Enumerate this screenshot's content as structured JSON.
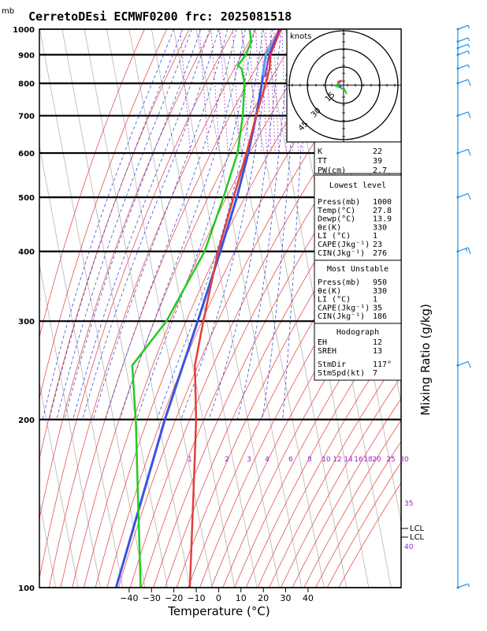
{
  "chart_data": {
    "type": "line",
    "title": "CerretoDEsi ECMWF0200  frc: 2025081518",
    "pressure_unit": "mb",
    "xlabel": "Temperature (°C)",
    "right_label": "Mixing Ratio  (g/kg)",
    "xlim": [
      -40,
      40
    ],
    "pressure_range": [
      1000,
      100
    ],
    "x_ticks": [
      "−40",
      "−30",
      "−20",
      "−10",
      "0",
      "10",
      "20",
      "30",
      "40"
    ],
    "pressure_levels": [
      100,
      200,
      300,
      400,
      500,
      600,
      700,
      800,
      900,
      1000
    ],
    "mixing_ratio_labels": [
      "1",
      "2",
      "3",
      "4",
      "6",
      "8",
      "10",
      "12",
      "14",
      "16",
      "18",
      "20",
      "25",
      "30",
      "35",
      "40"
    ],
    "lcl_labels": [
      "LCL",
      "LCL"
    ],
    "temperature_profile": [
      {
        "p": 1000,
        "t": 27.8
      },
      {
        "p": 950,
        "t": 24.5
      },
      {
        "p": 900,
        "t": 21.0
      },
      {
        "p": 850,
        "t": 19.5
      },
      {
        "p": 800,
        "t": 16.5
      },
      {
        "p": 700,
        "t": 9.5
      },
      {
        "p": 600,
        "t": 2.0
      },
      {
        "p": 500,
        "t": -7.5
      },
      {
        "p": 400,
        "t": -19.0
      },
      {
        "p": 300,
        "t": -31.5
      },
      {
        "p": 250,
        "t": -39.0
      },
      {
        "p": 200,
        "t": -43.0
      },
      {
        "p": 150,
        "t": -50.0
      },
      {
        "p": 100,
        "t": -60.0
      }
    ],
    "dewpoint_profile": [
      {
        "p": 1000,
        "t": 13.9
      },
      {
        "p": 950,
        "t": 13.5
      },
      {
        "p": 900,
        "t": 10.0
      },
      {
        "p": 860,
        "t": 5.5
      },
      {
        "p": 850,
        "t": 7.0
      },
      {
        "p": 800,
        "t": 7.0
      },
      {
        "p": 700,
        "t": 3.5
      },
      {
        "p": 600,
        "t": -2.0
      },
      {
        "p": 500,
        "t": -12.0
      },
      {
        "p": 400,
        "t": -25.0
      },
      {
        "p": 300,
        "t": -48.0
      },
      {
        "p": 250,
        "t": -67.0
      },
      {
        "p": 200,
        "t": -70.0
      },
      {
        "p": 150,
        "t": -75.0
      },
      {
        "p": 100,
        "t": -82.0
      }
    ],
    "parcel_profile": [
      {
        "p": 1000,
        "t": 27.8
      },
      {
        "p": 900,
        "t": 19.0
      },
      {
        "p": 825,
        "t": 15.8
      },
      {
        "p": 800,
        "t": 14.8
      },
      {
        "p": 700,
        "t": 9.5
      },
      {
        "p": 600,
        "t": 2.8
      },
      {
        "p": 500,
        "t": -6.0
      },
      {
        "p": 400,
        "t": -18.0
      },
      {
        "p": 300,
        "t": -34.0
      },
      {
        "p": 200,
        "t": -57.0
      },
      {
        "p": 100,
        "t": -93.0
      }
    ],
    "wind_profile": [
      {
        "p": 1000,
        "speed_kt": 4
      },
      {
        "p": 950,
        "speed_kt": 6
      },
      {
        "p": 925,
        "speed_kt": 5
      },
      {
        "p": 900,
        "speed_kt": 6
      },
      {
        "p": 850,
        "speed_kt": 7
      },
      {
        "p": 800,
        "speed_kt": 8
      },
      {
        "p": 700,
        "speed_kt": 9
      },
      {
        "p": 600,
        "speed_kt": 12
      },
      {
        "p": 500,
        "speed_kt": 12
      },
      {
        "p": 400,
        "speed_kt": 14
      },
      {
        "p": 250,
        "speed_kt": 10
      },
      {
        "p": 100,
        "speed_kt": 5
      }
    ],
    "hodograph": {
      "unit_label": "knots",
      "ring_labels": [
        "15",
        "30",
        "45"
      ]
    },
    "indices": {
      "general": [
        {
          "label": "K",
          "value": "22"
        },
        {
          "label": "TT",
          "value": "39"
        },
        {
          "label": "PW(cm)",
          "value": "2.7"
        }
      ],
      "lowest_level": {
        "header": "Lowest level",
        "rows": [
          {
            "label": "Press(mb)",
            "value": "1000"
          },
          {
            "label": "Temp(°C)",
            "value": "27.8"
          },
          {
            "label": "Dewp(°C)",
            "value": "13.9"
          },
          {
            "label": "θε(K)",
            "value": "330"
          },
          {
            "label": "LI (°C)",
            "value": "1"
          },
          {
            "label": "CAPE(Jkg⁻¹)",
            "value": "23"
          },
          {
            "label": "CIN(Jkg⁻¹)",
            "value": "276"
          }
        ]
      },
      "most_unstable": {
        "header": "Most Unstable",
        "rows": [
          {
            "label": "Press(mb)",
            "value": "950"
          },
          {
            "label": "θε(K)",
            "value": "330"
          },
          {
            "label": "LI (°C)",
            "value": "1"
          },
          {
            "label": "CAPE(Jkg⁻¹)",
            "value": "35"
          },
          {
            "label": "CIN(Jkg⁻¹)",
            "value": "186"
          }
        ]
      },
      "hodograph_block": {
        "header": "Hodograph",
        "rows": [
          {
            "label": "EH",
            "value": "12"
          },
          {
            "label": "SREH",
            "value": "13"
          },
          {
            "label": "StmDir",
            "value": "117°"
          },
          {
            "label": "StmSpd(kt)",
            "value": "7"
          }
        ]
      }
    },
    "colors": {
      "temperature": "#e0403a",
      "dewpoint": "#22cc22",
      "parcel": "#3a52e0",
      "isotherm": "#b4b4b4",
      "dry_adiabat": "#e85050",
      "moist_adiabat": "#3a52e0",
      "mixing_ratio": "#a020c0",
      "wind": "#1f8fe8"
    }
  }
}
